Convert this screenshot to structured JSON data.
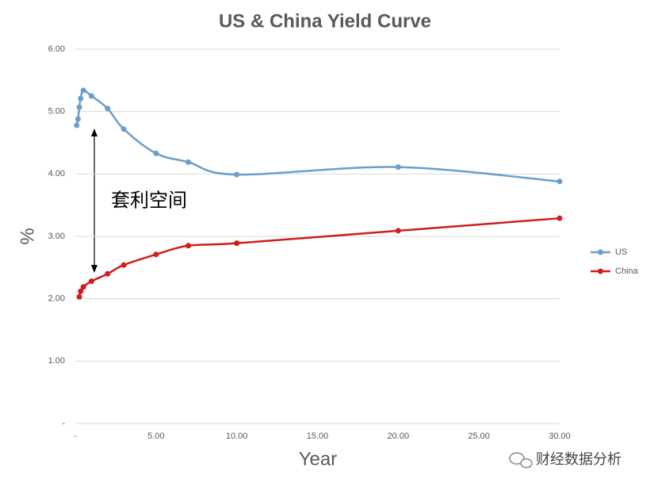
{
  "chart_data": {
    "type": "line",
    "title": "US & China Yield Curve",
    "x_label": "Year",
    "y_label": "%",
    "annotation": "套利空间",
    "watermark": "财经数据分析",
    "xlim": [
      0,
      30
    ],
    "ylim": [
      0,
      6
    ],
    "xticks": [
      {
        "value": 0,
        "label": "-"
      },
      {
        "value": 5,
        "label": "5.00"
      },
      {
        "value": 10,
        "label": "10.00"
      },
      {
        "value": 15,
        "label": "15.00"
      },
      {
        "value": 20,
        "label": "20.00"
      },
      {
        "value": 25,
        "label": "25.00"
      },
      {
        "value": 30,
        "label": "30.00"
      }
    ],
    "yticks": [
      {
        "value": 0,
        "label": "-"
      },
      {
        "value": 1,
        "label": "1.00"
      },
      {
        "value": 2,
        "label": "2.00"
      },
      {
        "value": 3,
        "label": "3.00"
      },
      {
        "value": 4,
        "label": "4.00"
      },
      {
        "value": 5,
        "label": "5.00"
      },
      {
        "value": 6,
        "label": "6.00"
      }
    ],
    "grid": true,
    "legend": "right",
    "series": [
      {
        "name": "US",
        "color": "#6a9fca",
        "x": [
          0.083,
          0.167,
          0.25,
          0.333,
          0.5,
          1,
          2,
          3,
          5,
          7,
          10,
          20,
          30
        ],
        "values": [
          4.78,
          4.88,
          5.07,
          5.21,
          5.34,
          5.25,
          5.05,
          4.72,
          4.33,
          4.19,
          3.99,
          4.11,
          3.88
        ]
      },
      {
        "name": "China",
        "color": "#d01c1c",
        "x": [
          0.25,
          0.333,
          0.5,
          1,
          2,
          3,
          5,
          7,
          10,
          20,
          30
        ],
        "values": [
          2.03,
          2.12,
          2.19,
          2.28,
          2.4,
          2.54,
          2.71,
          2.85,
          2.89,
          3.09,
          3.29
        ]
      }
    ]
  }
}
